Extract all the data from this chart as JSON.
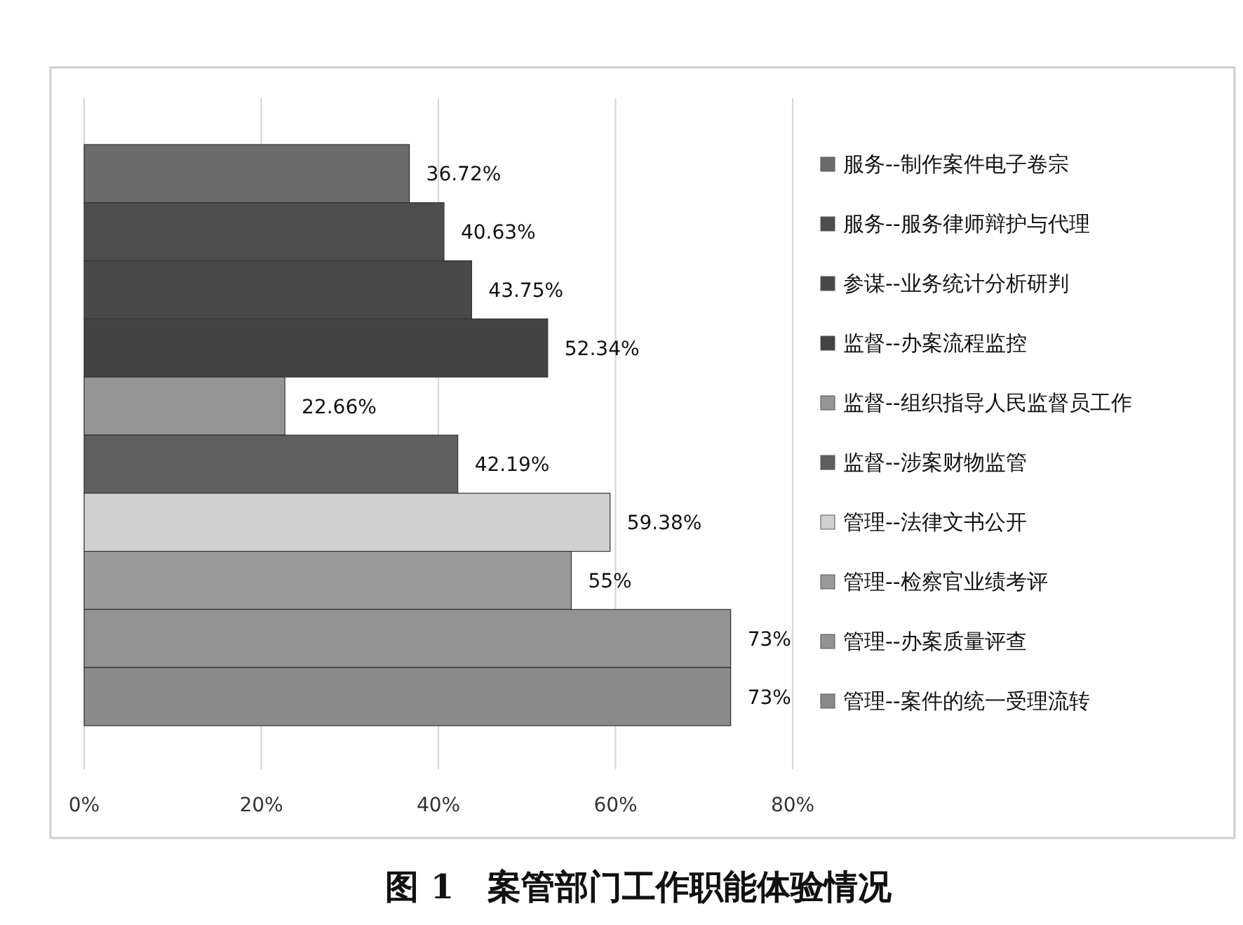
{
  "chart_data": {
    "type": "bar",
    "orientation": "horizontal",
    "title": "图 1　案管部门工作职能体验情况",
    "categories": [
      null
    ],
    "series": [
      {
        "name": "服务--制作案件电子卷宗",
        "color": "#6b6b6b",
        "values": [
          36.72
        ],
        "value_labels": [
          "36.72%"
        ]
      },
      {
        "name": "服务--服务律师辩护与代理",
        "color": "#4d4d4d",
        "values": [
          40.63
        ],
        "value_labels": [
          "40.63%"
        ]
      },
      {
        "name": "参谋--业务统计分析研判",
        "color": "#494949",
        "values": [
          43.75
        ],
        "value_labels": [
          "43.75%"
        ]
      },
      {
        "name": "监督--办案流程监控",
        "color": "#434343",
        "values": [
          52.34
        ],
        "value_labels": [
          "52.34%"
        ]
      },
      {
        "name": "监督--组织指导人民监督员工作",
        "color": "#959595",
        "values": [
          22.66
        ],
        "value_labels": [
          "22.66%"
        ]
      },
      {
        "name": "监督--涉案财物监管",
        "color": "#5f5f5f",
        "values": [
          42.19
        ],
        "value_labels": [
          "42.19%"
        ]
      },
      {
        "name": "管理--法律文书公开",
        "color": "#d0d0d0",
        "values": [
          59.38
        ],
        "value_labels": [
          "59.38%"
        ]
      },
      {
        "name": "管理--检察官业绩考评",
        "color": "#9a9a9a",
        "values": [
          55
        ],
        "value_labels": [
          "55%"
        ]
      },
      {
        "name": "管理--办案质量评查",
        "color": "#939393",
        "values": [
          73
        ],
        "value_labels": [
          "73%"
        ]
      },
      {
        "name": "管理--案件的统一受理流转",
        "color": "#8a8a8a",
        "values": [
          73
        ],
        "value_labels": [
          "73%"
        ]
      }
    ],
    "xlim": [
      0,
      80
    ],
    "xticks": [
      {
        "value": 0,
        "label": "0%"
      },
      {
        "value": 20,
        "label": "20%"
      },
      {
        "value": 40,
        "label": "40%"
      },
      {
        "value": 60,
        "label": "60%"
      },
      {
        "value": 80,
        "label": "80%"
      }
    ],
    "grid": "x",
    "legend": "right"
  }
}
